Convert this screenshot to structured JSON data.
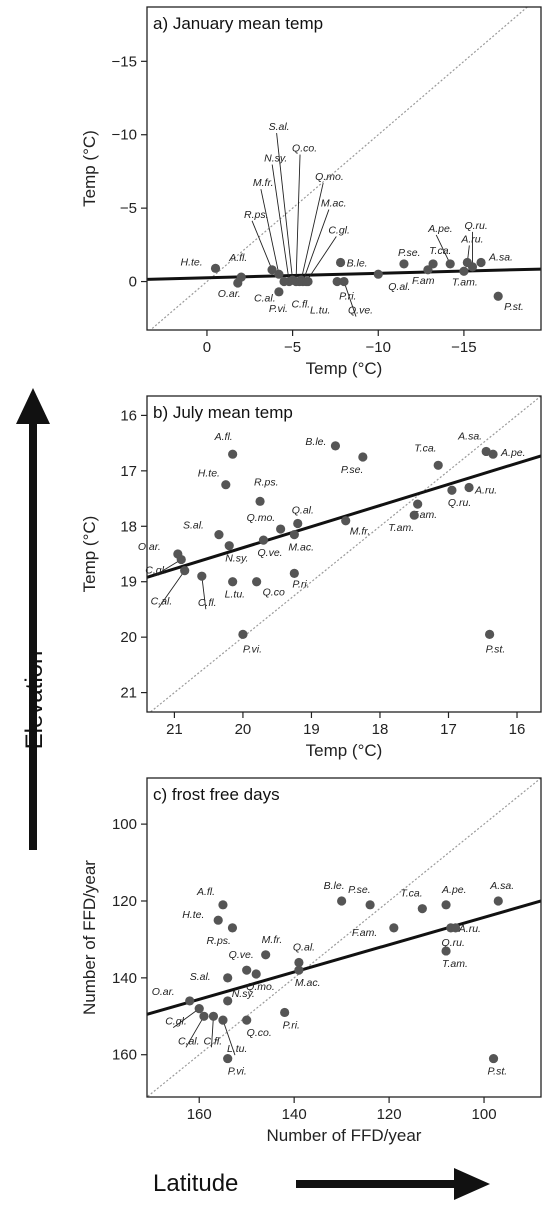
{
  "figure": {
    "side_label": "Elevation",
    "bottom_label": "Latitude"
  },
  "colors": {
    "point": "#555555",
    "fit": "#111111",
    "ref": "#9a9a9a",
    "frame": "#222222"
  },
  "chart_data": [
    {
      "id": "a",
      "type": "scatter",
      "title": "a) January mean temp",
      "xlabel": "Temp (°C)",
      "ylabel": "Temp (°C)",
      "xlim": [
        3.5,
        -19.5
      ],
      "ylim": [
        3.3,
        -18.7
      ],
      "xticks": [
        0,
        -5,
        -10,
        -15
      ],
      "xtick_labels": [
        "0",
        "−5",
        "−10",
        "−15"
      ],
      "yticks": [
        0,
        -5,
        -10,
        -15
      ],
      "ytick_labels": [
        "0",
        "−5",
        "−10",
        "−15"
      ],
      "one_to_one_line": true,
      "fit_line": [
        [
          3.5,
          -0.15
        ],
        [
          -19.5,
          -0.85
        ]
      ],
      "points": [
        {
          "label": "H.te.",
          "x": -0.5,
          "y": -0.9
        },
        {
          "label": "A.fl.",
          "x": -2.0,
          "y": -0.3
        },
        {
          "label": "O.ar.",
          "x": -1.8,
          "y": 0.1
        },
        {
          "label": "R.ps.",
          "x": -3.8,
          "y": -0.8
        },
        {
          "label": "M.fr.",
          "x": -4.2,
          "y": -0.5
        },
        {
          "label": "C.al.",
          "x": -4.5,
          "y": 0.0
        },
        {
          "label": "N.sy.",
          "x": -4.8,
          "y": 0.0
        },
        {
          "label": "P.vi.",
          "x": -4.2,
          "y": 0.7
        },
        {
          "label": "S.al.",
          "x": -5.0,
          "y": -0.1
        },
        {
          "label": "Q.co.",
          "x": -5.2,
          "y": 0.0
        },
        {
          "label": "C.fl.",
          "x": -5.4,
          "y": 0.0
        },
        {
          "label": "Q.mo.",
          "x": -5.5,
          "y": -0.1
        },
        {
          "label": "M.ac.",
          "x": -5.6,
          "y": 0.0
        },
        {
          "label": "C.gl.",
          "x": -5.8,
          "y": 0.0
        },
        {
          "label": "L.tu.",
          "x": -5.9,
          "y": 0.0
        },
        {
          "label": "B.le.",
          "x": -7.8,
          "y": -1.3
        },
        {
          "label": "P.ri.",
          "x": -7.6,
          "y": 0.0
        },
        {
          "label": "Q.ve.",
          "x": -8.0,
          "y": 0.0
        },
        {
          "label": "Q.al.",
          "x": -10.0,
          "y": -0.5
        },
        {
          "label": "P.se.",
          "x": -11.5,
          "y": -1.2
        },
        {
          "label": "T.ca.",
          "x": -13.2,
          "y": -1.2
        },
        {
          "label": "F.am",
          "x": -12.9,
          "y": -0.8
        },
        {
          "label": "A.pe.",
          "x": -14.2,
          "y": -1.2
        },
        {
          "label": "T.am.",
          "x": -15.0,
          "y": -0.7
        },
        {
          "label": "Q.ru.",
          "x": -15.5,
          "y": -1.0
        },
        {
          "label": "A.ru.",
          "x": -15.2,
          "y": -1.3
        },
        {
          "label": "A.sa.",
          "x": -16.0,
          "y": -1.3
        },
        {
          "label": "P.st.",
          "x": -17.0,
          "y": 1.0
        }
      ]
    },
    {
      "id": "b",
      "type": "scatter",
      "title": "b) July mean temp",
      "xlabel": "Temp (°C)",
      "ylabel": "Temp (°C)",
      "xlim": [
        21.4,
        15.65
      ],
      "ylim": [
        21.35,
        15.65
      ],
      "xticks": [
        21,
        20,
        19,
        18,
        17,
        16
      ],
      "xtick_labels": [
        "21",
        "20",
        "19",
        "18",
        "17",
        "16"
      ],
      "yticks": [
        16,
        17,
        18,
        19,
        20,
        21
      ],
      "ytick_labels": [
        "16",
        "17",
        "18",
        "19",
        "20",
        "21"
      ],
      "one_to_one_line": true,
      "fit_line": [
        [
          21.4,
          18.92
        ],
        [
          15.65,
          16.73
        ]
      ],
      "points": [
        {
          "label": "A.fl.",
          "x": 20.15,
          "y": 16.7
        },
        {
          "label": "H.te.",
          "x": 20.25,
          "y": 17.25
        },
        {
          "label": "B.le.",
          "x": 18.65,
          "y": 16.55
        },
        {
          "label": "P.se.",
          "x": 18.25,
          "y": 16.75
        },
        {
          "label": "T.ca.",
          "x": 17.15,
          "y": 16.9
        },
        {
          "label": "A.sa.",
          "x": 16.45,
          "y": 16.65
        },
        {
          "label": "A.pe.",
          "x": 16.35,
          "y": 16.7
        },
        {
          "label": "A.ru.",
          "x": 16.7,
          "y": 17.3
        },
        {
          "label": "Q.ru.",
          "x": 16.95,
          "y": 17.35
        },
        {
          "label": "F.am.",
          "x": 17.45,
          "y": 17.6
        },
        {
          "label": "T.am.",
          "x": 17.5,
          "y": 17.8
        },
        {
          "label": "R.ps.",
          "x": 19.75,
          "y": 17.55
        },
        {
          "label": "Q.al.",
          "x": 19.2,
          "y": 17.95
        },
        {
          "label": "M.fr.",
          "x": 18.5,
          "y": 17.9
        },
        {
          "label": "Q.mo.",
          "x": 19.45,
          "y": 18.05
        },
        {
          "label": "M.ac.",
          "x": 19.25,
          "y": 18.15
        },
        {
          "label": "S.al.",
          "x": 20.35,
          "y": 18.15
        },
        {
          "label": "Q.ve.",
          "x": 19.7,
          "y": 18.25
        },
        {
          "label": "N.sy.",
          "x": 20.2,
          "y": 18.35
        },
        {
          "label": "O.ar.",
          "x": 20.95,
          "y": 18.5
        },
        {
          "label": "C.gl.",
          "x": 20.9,
          "y": 18.6
        },
        {
          "label": "C.al.",
          "x": 20.85,
          "y": 18.8
        },
        {
          "label": "C.fl.",
          "x": 20.6,
          "y": 18.9
        },
        {
          "label": "L.tu.",
          "x": 20.15,
          "y": 19.0
        },
        {
          "label": "Q.co",
          "x": 19.8,
          "y": 19.0
        },
        {
          "label": "P.ri.",
          "x": 19.25,
          "y": 18.85
        },
        {
          "label": "P.vi.",
          "x": 20.0,
          "y": 19.95
        },
        {
          "label": "P.st.",
          "x": 16.4,
          "y": 19.95
        }
      ]
    },
    {
      "id": "c",
      "type": "scatter",
      "title": "c) frost free days",
      "xlabel": "Number of FFD/year",
      "ylabel": "Number of FFD/year",
      "xlim": [
        171,
        88
      ],
      "ylim": [
        171,
        88
      ],
      "xticks": [
        160,
        140,
        120,
        100
      ],
      "xtick_labels": [
        "160",
        "140",
        "120",
        "100"
      ],
      "yticks": [
        100,
        120,
        140,
        160
      ],
      "ytick_labels": [
        "100",
        "120",
        "140",
        "160"
      ],
      "one_to_one_line": true,
      "fit_line": [
        [
          171,
          149.5
        ],
        [
          88,
          120.0
        ]
      ],
      "points": [
        {
          "label": "A.fl.",
          "x": 155,
          "y": 121
        },
        {
          "label": "H.te.",
          "x": 156,
          "y": 125
        },
        {
          "label": "R.ps.",
          "x": 153,
          "y": 127
        },
        {
          "label": "B.le.",
          "x": 130,
          "y": 120
        },
        {
          "label": "P.se.",
          "x": 124,
          "y": 121
        },
        {
          "label": "T.ca.",
          "x": 113,
          "y": 122
        },
        {
          "label": "A.pe.",
          "x": 108,
          "y": 121
        },
        {
          "label": "A.sa.",
          "x": 97,
          "y": 120
        },
        {
          "label": "F.am.",
          "x": 119,
          "y": 127
        },
        {
          "label": "A.ru.",
          "x": 107,
          "y": 127
        },
        {
          "label": "Q.ru.",
          "x": 106,
          "y": 127
        },
        {
          "label": "T.am.",
          "x": 108,
          "y": 133
        },
        {
          "label": "M.fr.",
          "x": 146,
          "y": 134
        },
        {
          "label": "Q.al.",
          "x": 139,
          "y": 136
        },
        {
          "label": "Q.ve.",
          "x": 150,
          "y": 138
        },
        {
          "label": "M.ac.",
          "x": 139,
          "y": 138
        },
        {
          "label": "S.al.",
          "x": 154,
          "y": 140
        },
        {
          "label": "Q.mo.",
          "x": 148,
          "y": 139
        },
        {
          "label": "N.sy.",
          "x": 154,
          "y": 146
        },
        {
          "label": "O.ar.",
          "x": 162,
          "y": 146
        },
        {
          "label": "C.gl.",
          "x": 160,
          "y": 148
        },
        {
          "label": "C.al.",
          "x": 159,
          "y": 150
        },
        {
          "label": "C.fl.",
          "x": 157,
          "y": 150
        },
        {
          "label": "L.tu.",
          "x": 155,
          "y": 151
        },
        {
          "label": "Q.co.",
          "x": 150,
          "y": 151
        },
        {
          "label": "P.ri.",
          "x": 142,
          "y": 149
        },
        {
          "label": "P.vi.",
          "x": 154,
          "y": 161
        },
        {
          "label": "P.st.",
          "x": 98,
          "y": 161
        }
      ]
    }
  ]
}
